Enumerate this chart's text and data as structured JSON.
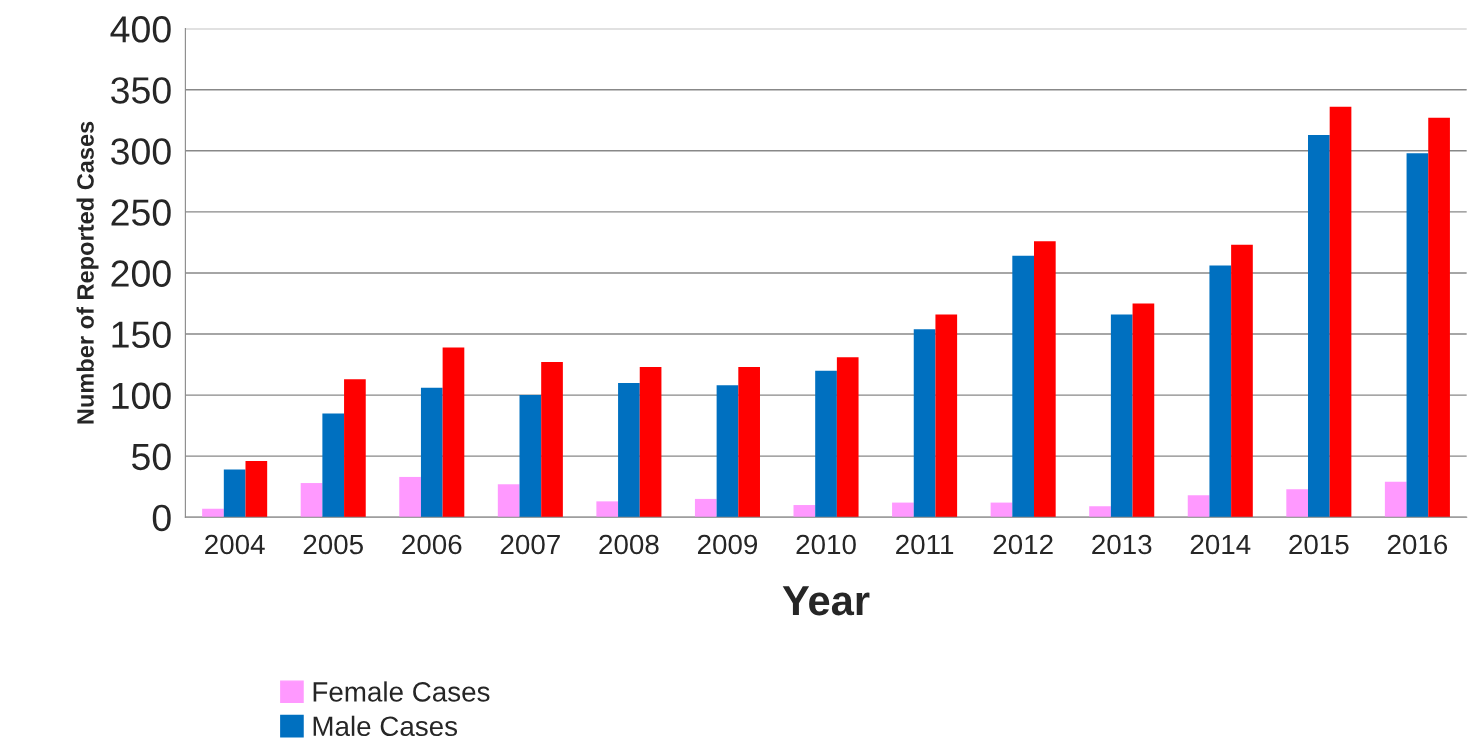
{
  "chart_data": {
    "type": "bar",
    "xlabel": "Year",
    "ylabel": "Number of Reported Cases",
    "categories": [
      "2004",
      "2005",
      "2006",
      "2007",
      "2008",
      "2009",
      "2010",
      "2011",
      "2012",
      "2013",
      "2014",
      "2015",
      "2016"
    ],
    "series": [
      {
        "name": "Female Cases",
        "color": "#ff99ff",
        "values": [
          7,
          28,
          33,
          27,
          13,
          15,
          10,
          12,
          12,
          9,
          18,
          23,
          29
        ]
      },
      {
        "name": "Male Cases",
        "color": "#0070c0",
        "values": [
          39,
          85,
          106,
          100,
          110,
          108,
          120,
          154,
          214,
          166,
          206,
          313,
          298
        ]
      },
      {
        "color": "#ff0000",
        "values": [
          46,
          113,
          139,
          127,
          123,
          123,
          131,
          166,
          226,
          175,
          223,
          336,
          327
        ]
      }
    ],
    "ylim": [
      0,
      400
    ],
    "yticks": [
      0,
      50,
      100,
      150,
      200,
      250,
      300,
      350,
      400
    ],
    "grid": "y",
    "legend": "bottom"
  }
}
